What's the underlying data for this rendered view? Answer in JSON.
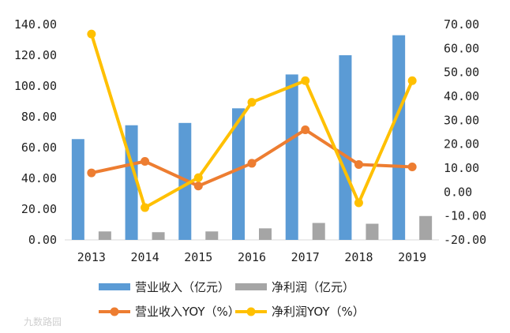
{
  "chart_data": {
    "type": "bar",
    "categories": [
      "2013",
      "2014",
      "2015",
      "2016",
      "2017",
      "2018",
      "2019"
    ],
    "y_left": {
      "lim": [
        0,
        140
      ],
      "step": 20,
      "tick_labels": [
        "0.00",
        "20.00",
        "40.00",
        "60.00",
        "80.00",
        "100.00",
        "120.00",
        "140.00"
      ]
    },
    "y_right": {
      "lim": [
        -20,
        70
      ],
      "step": 10,
      "tick_labels": [
        "-20.00",
        "-10.00",
        "0.00",
        "10.00",
        "20.00",
        "30.00",
        "40.00",
        "50.00",
        "60.00",
        "70.00"
      ]
    },
    "series": [
      {
        "name": "营业收入（亿元）",
        "type": "bar",
        "axis": "left",
        "color": "#5b9bd5",
        "values": [
          65.5,
          74.5,
          76.0,
          85.5,
          107.5,
          120.0,
          133.0
        ]
      },
      {
        "name": "净利润（亿元）",
        "type": "bar",
        "axis": "left",
        "color": "#a5a5a5",
        "values": [
          5.5,
          5.0,
          5.5,
          7.5,
          11.0,
          10.5,
          15.5
        ]
      },
      {
        "name": "营业收入YOY（%）",
        "type": "line",
        "axis": "right",
        "color": "#ed7d31",
        "values": [
          8.0,
          12.8,
          2.5,
          12.0,
          26.0,
          11.5,
          10.5
        ]
      },
      {
        "name": "净利润YOY（%）",
        "type": "line",
        "axis": "right",
        "color": "#ffc000",
        "values": [
          66.0,
          -6.5,
          6.0,
          37.5,
          46.5,
          -4.5,
          46.5
        ]
      }
    ],
    "grid": false,
    "legend_position": "bottom"
  },
  "watermark": {
    "text": "九数路园"
  }
}
